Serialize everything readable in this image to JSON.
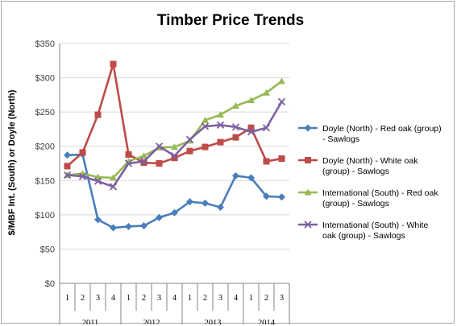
{
  "chart_data": {
    "type": "line",
    "title": "Timber Price Trends",
    "ylabel": "$/MBF Int. (South) or Doyle (North)",
    "xlabel": "",
    "ylim": [
      0,
      350
    ],
    "ytick_step": 50,
    "ytick_labels": [
      "$0",
      "$50",
      "$100",
      "$150",
      "$200",
      "$250",
      "$300",
      "$350"
    ],
    "categories": [
      "1",
      "2",
      "3",
      "4",
      "1",
      "2",
      "3",
      "4",
      "1",
      "2",
      "3",
      "4",
      "1",
      "2",
      "3"
    ],
    "year_groups": [
      {
        "label": "2011",
        "count": 4
      },
      {
        "label": "2012",
        "count": 4
      },
      {
        "label": "2013",
        "count": 4
      },
      {
        "label": "2014",
        "count": 3
      }
    ],
    "grid": true,
    "legend_position": "right",
    "series": [
      {
        "name": "Doyle (North) - Red oak (group) - Sawlogs",
        "color": "#4a7ebb",
        "marker": "diamond",
        "values": [
          187,
          188,
          93,
          81,
          83,
          84,
          96,
          103,
          119,
          117,
          111,
          157,
          154,
          127,
          126
        ]
      },
      {
        "name": "Doyle (North) - White oak (group) - Sawlogs",
        "color": "#be4b48",
        "marker": "square",
        "values": [
          171,
          191,
          246,
          320,
          188,
          176,
          175,
          183,
          193,
          199,
          206,
          213,
          227,
          178,
          182
        ]
      },
      {
        "name": "International (South) - Red oak (group) - Sawlogs",
        "color": "#98b954",
        "marker": "triangle",
        "values": [
          158,
          160,
          155,
          154,
          178,
          186,
          198,
          199,
          208,
          238,
          246,
          259,
          267,
          278,
          295
        ]
      },
      {
        "name": "International (South) - White oak (group) - Sawlogs",
        "color": "#7d60a0",
        "marker": "x",
        "values": [
          158,
          156,
          149,
          141,
          175,
          178,
          200,
          186,
          210,
          229,
          231,
          228,
          221,
          227,
          265
        ]
      }
    ],
    "legend_lines": [
      [
        "Doyle (North) - Red oak (group)",
        "- Sawlogs"
      ],
      [
        "Doyle (North) - White oak",
        "(group) - Sawlogs"
      ],
      [
        "International (South) - Red oak",
        "(group) - Sawlogs"
      ],
      [
        "International (South) - White",
        "oak (group) - Sawlogs"
      ]
    ]
  }
}
